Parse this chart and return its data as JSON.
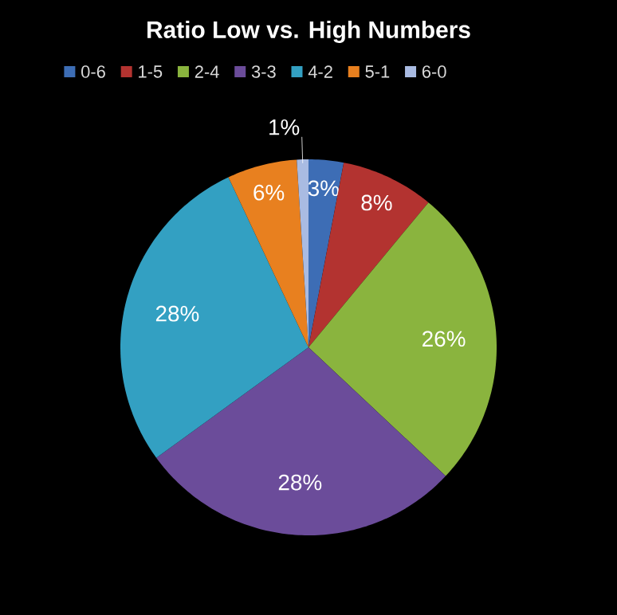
{
  "chart_data": {
    "type": "pie",
    "title": "Ratio Low vs. High Numbers",
    "categories": [
      "0-6",
      "1-5",
      "2-4",
      "3-3",
      "4-2",
      "5-1",
      "6-0"
    ],
    "values": [
      3,
      8,
      26,
      28,
      28,
      6,
      1
    ],
    "value_labels": [
      "3%",
      "8%",
      "26%",
      "28%",
      "28%",
      "6%",
      "1%"
    ],
    "colors": [
      "#3d6db5",
      "#b33330",
      "#8ab43e",
      "#6b4c9a",
      "#33a0c2",
      "#e8801f",
      "#a9bbe2"
    ],
    "legend": "top"
  }
}
